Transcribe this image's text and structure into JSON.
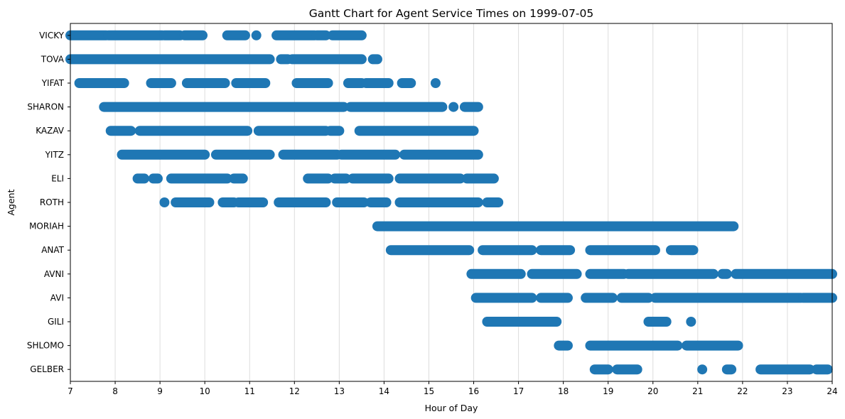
{
  "chart_data": {
    "type": "gantt",
    "title": "Gantt Chart for Agent Service Times on 1999-07-05",
    "xlabel": "Hour of Day",
    "ylabel": "Agent",
    "xlim": [
      7,
      24
    ],
    "x_ticks": [
      "7",
      "8",
      "9",
      "10",
      "11",
      "12",
      "13",
      "14",
      "15",
      "16",
      "17",
      "18",
      "19",
      "20",
      "21",
      "22",
      "23",
      "24"
    ],
    "grid": "vertical",
    "color": "#1f77b4",
    "agents": [
      {
        "name": "VICKY",
        "segments": [
          [
            7.0,
            7.8
          ],
          [
            7.85,
            9.05
          ],
          [
            9.1,
            9.45
          ],
          [
            9.55,
            9.95
          ],
          [
            10.5,
            10.9
          ],
          [
            11.15,
            11.15
          ],
          [
            11.6,
            12.45
          ],
          [
            12.5,
            12.7
          ],
          [
            12.85,
            13.5
          ]
        ]
      },
      {
        "name": "TOVA",
        "segments": [
          [
            7.0,
            11.45
          ],
          [
            11.7,
            11.85
          ],
          [
            11.95,
            13.5
          ],
          [
            13.75,
            13.85
          ]
        ]
      },
      {
        "name": "YIFAT",
        "segments": [
          [
            7.2,
            8.2
          ],
          [
            8.8,
            9.25
          ],
          [
            9.6,
            10.45
          ],
          [
            10.7,
            11.35
          ],
          [
            12.05,
            12.75
          ],
          [
            13.2,
            13.5
          ],
          [
            13.6,
            14.1
          ],
          [
            14.4,
            14.6
          ],
          [
            15.15,
            15.15
          ]
        ]
      },
      {
        "name": "SHARON",
        "segments": [
          [
            7.75,
            13.1
          ],
          [
            13.25,
            15.3
          ],
          [
            15.55,
            15.55
          ],
          [
            15.8,
            16.1
          ]
        ]
      },
      {
        "name": "KAZAV",
        "segments": [
          [
            7.9,
            8.35
          ],
          [
            8.55,
            10.95
          ],
          [
            11.2,
            12.7
          ],
          [
            12.8,
            13.0
          ],
          [
            13.45,
            16.0
          ]
        ]
      },
      {
        "name": "YITZ",
        "segments": [
          [
            8.15,
            10.0
          ],
          [
            10.25,
            11.45
          ],
          [
            11.75,
            12.95
          ],
          [
            13.05,
            14.25
          ],
          [
            14.45,
            16.1
          ]
        ]
      },
      {
        "name": "ELI",
        "segments": [
          [
            8.5,
            8.65
          ],
          [
            8.85,
            8.95
          ],
          [
            9.25,
            10.5
          ],
          [
            10.65,
            10.85
          ],
          [
            12.3,
            12.75
          ],
          [
            12.9,
            13.15
          ],
          [
            13.3,
            14.1
          ],
          [
            14.35,
            15.7
          ],
          [
            15.85,
            16.45
          ]
        ]
      },
      {
        "name": "ROTH",
        "segments": [
          [
            9.1,
            9.1
          ],
          [
            9.35,
            10.1
          ],
          [
            10.4,
            10.65
          ],
          [
            10.75,
            11.3
          ],
          [
            11.65,
            12.7
          ],
          [
            12.95,
            13.55
          ],
          [
            13.7,
            14.05
          ],
          [
            14.35,
            16.1
          ],
          [
            16.3,
            16.55
          ]
        ]
      },
      {
        "name": "MORIAH",
        "segments": [
          [
            13.85,
            21.8
          ]
        ]
      },
      {
        "name": "ANAT",
        "segments": [
          [
            14.15,
            15.9
          ],
          [
            16.2,
            17.3
          ],
          [
            17.5,
            18.15
          ],
          [
            18.6,
            20.05
          ],
          [
            20.4,
            20.9
          ]
        ]
      },
      {
        "name": "AVNI",
        "segments": [
          [
            15.95,
            17.05
          ],
          [
            17.3,
            18.3
          ],
          [
            18.6,
            19.35
          ],
          [
            19.45,
            21.35
          ],
          [
            21.55,
            21.65
          ],
          [
            21.85,
            24.0
          ]
        ]
      },
      {
        "name": "AVI",
        "segments": [
          [
            16.05,
            17.3
          ],
          [
            17.5,
            18.1
          ],
          [
            18.5,
            19.1
          ],
          [
            19.3,
            19.9
          ],
          [
            20.05,
            23.3
          ],
          [
            23.35,
            24.0
          ]
        ]
      },
      {
        "name": "GILI",
        "segments": [
          [
            16.3,
            17.85
          ],
          [
            19.9,
            20.3
          ],
          [
            20.85,
            20.85
          ]
        ]
      },
      {
        "name": "SHLOMO",
        "segments": [
          [
            17.9,
            18.1
          ],
          [
            18.6,
            20.55
          ],
          [
            20.75,
            21.9
          ]
        ]
      },
      {
        "name": "GELBER",
        "segments": [
          [
            18.7,
            19.0
          ],
          [
            19.2,
            19.65
          ],
          [
            21.1,
            21.1
          ],
          [
            21.65,
            21.75
          ],
          [
            22.4,
            23.5
          ],
          [
            23.65,
            23.9
          ]
        ]
      }
    ]
  }
}
